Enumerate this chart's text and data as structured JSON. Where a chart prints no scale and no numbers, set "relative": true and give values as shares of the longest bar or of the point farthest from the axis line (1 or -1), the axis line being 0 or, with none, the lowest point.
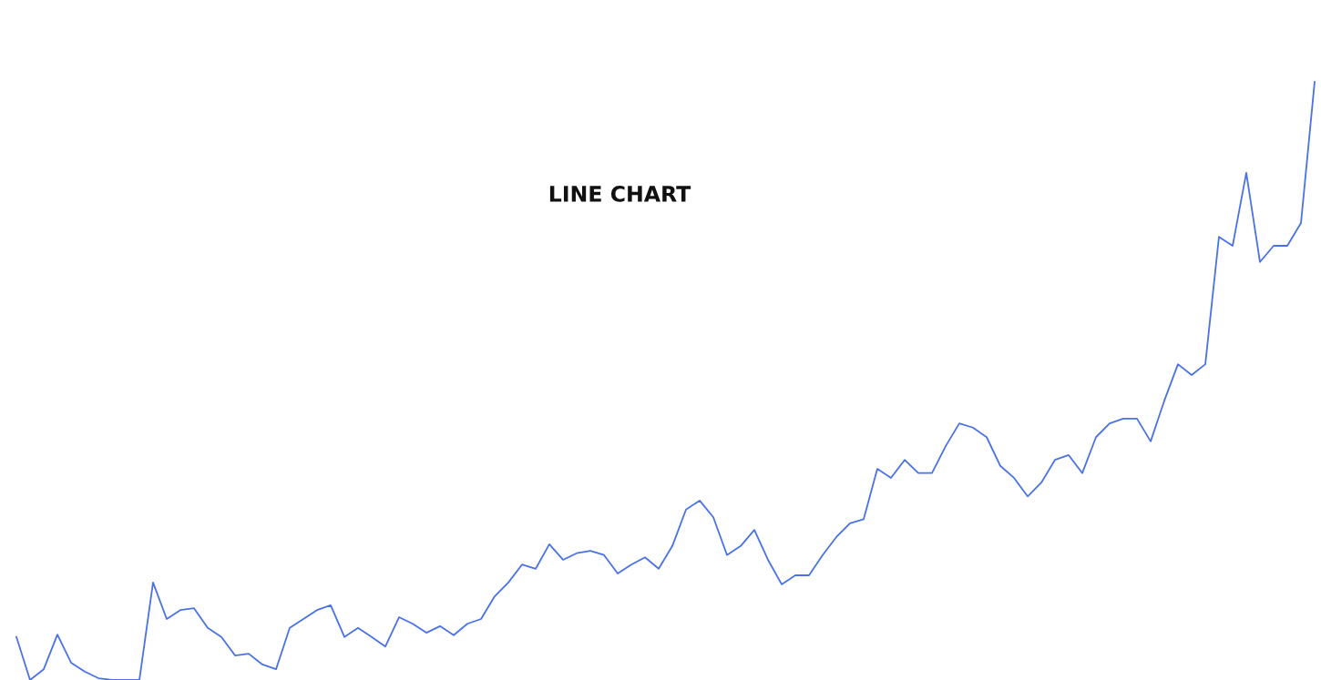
{
  "chart_data": {
    "type": "line",
    "title": "LINE CHART",
    "relative": true,
    "color": "#4a72e8",
    "legend": false,
    "marker": "none",
    "line_style": "solid",
    "categories": [
      null,
      null,
      null,
      null,
      null,
      null,
      null,
      null,
      null,
      null,
      null,
      null,
      null,
      null,
      null,
      null,
      null,
      null,
      null,
      null,
      null,
      null,
      null,
      null,
      null,
      null,
      null,
      null,
      null,
      null,
      null,
      null,
      null,
      null,
      null,
      null,
      null,
      null,
      null,
      null,
      null,
      null,
      null,
      null,
      null,
      null,
      null,
      null,
      null,
      null,
      null,
      null,
      null,
      null,
      null,
      null,
      null,
      null,
      null,
      null,
      null,
      null,
      null,
      null,
      null,
      null,
      null,
      null,
      null,
      null,
      null,
      null,
      null,
      null,
      null,
      null,
      null,
      null,
      null,
      null,
      null,
      null,
      null,
      null,
      null,
      null,
      null,
      null,
      null,
      null,
      null,
      null,
      null,
      null,
      null,
      null
    ],
    "values": [
      0.072,
      0,
      0.018,
      0.076,
      0.029,
      0.014,
      0.003,
      0,
      0,
      0,
      0.163,
      0.102,
      0.117,
      0.12,
      0.087,
      0.072,
      0.041,
      0.044,
      0.026,
      0.018,
      0.087,
      0.102,
      0.117,
      0.125,
      0.072,
      0.087,
      0.072,
      0.056,
      0.105,
      0.094,
      0.079,
      0.09,
      0.075,
      0.094,
      0.102,
      0.14,
      0.163,
      0.193,
      0.186,
      0.227,
      0.201,
      0.212,
      0.216,
      0.209,
      0.178,
      0.193,
      0.205,
      0.186,
      0.224,
      0.285,
      0.3,
      0.272,
      0.209,
      0.224,
      0.251,
      0.201,
      0.16,
      0.175,
      0.175,
      0.209,
      0.239,
      0.262,
      0.269,
      0.353,
      0.338,
      0.368,
      0.346,
      0.346,
      0.391,
      0.429,
      0.422,
      0.406,
      0.358,
      0.338,
      0.307,
      0.33,
      0.368,
      0.376,
      0.346,
      0.406,
      0.429,
      0.437,
      0.437,
      0.399,
      0.467,
      0.528,
      0.51,
      0.528,
      0.741,
      0.726,
      0.848,
      0.699,
      0.726,
      0.726,
      0.764,
      1
    ]
  }
}
